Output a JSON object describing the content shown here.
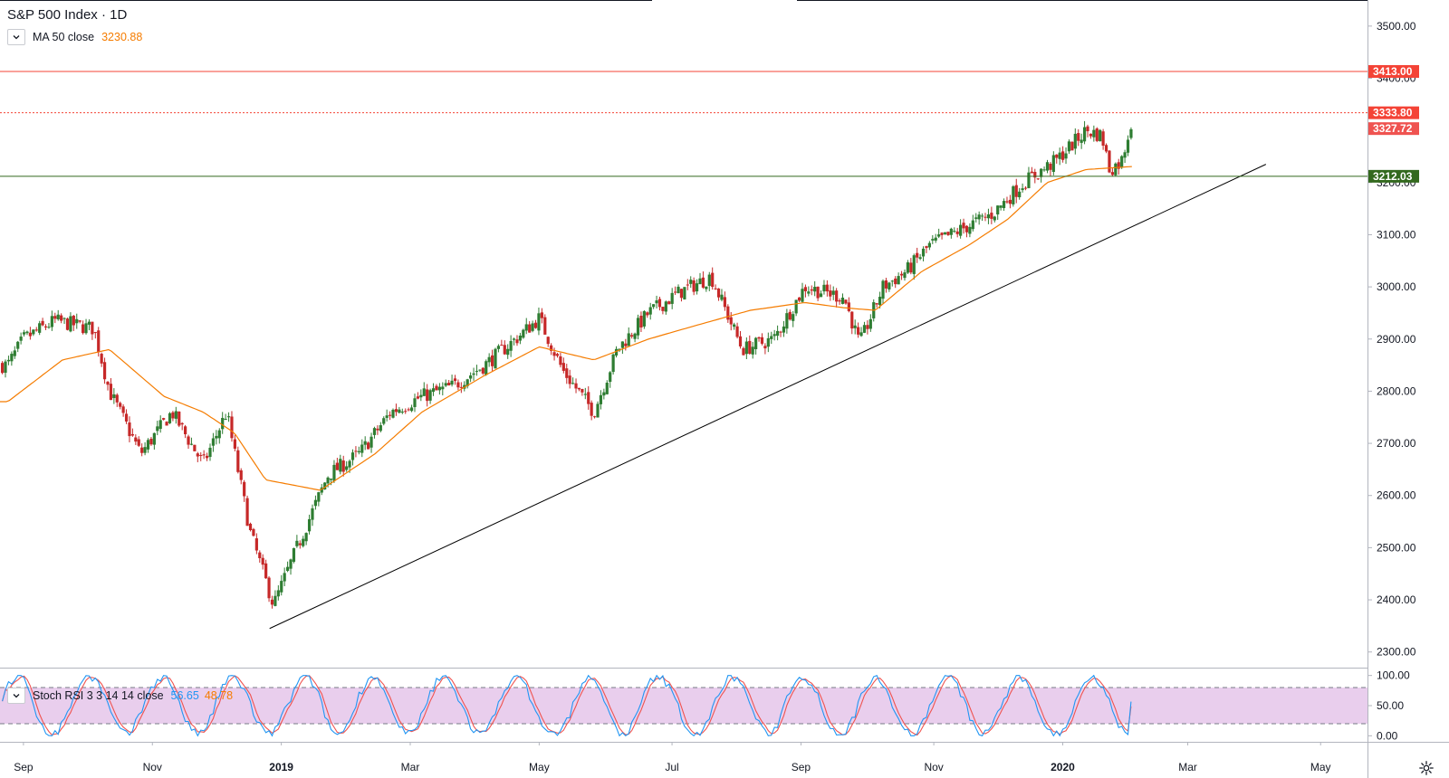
{
  "legend": {
    "title": "S&P 500 Index · 1D",
    "ma_label": "MA 50 close",
    "ma_value": "3230.88",
    "stoch_label": "Stoch RSI 3 3 14 14 close",
    "stoch_k": "56.65",
    "stoch_d": "48.78"
  },
  "colors": {
    "up": "#26a69a",
    "up_fill": "#2e7d32",
    "down": "#c62828",
    "ma": "#f57c00",
    "resistance": "#f44336",
    "support": "#33691e",
    "trendline": "#000000",
    "stoch_k": "#2196f3",
    "stoch_d": "#ef5350",
    "stoch_band": "#e1bee7"
  },
  "chart_data": {
    "type": "candlestick",
    "x_ticks": [
      "Sep",
      "Nov",
      "2019",
      "Mar",
      "May",
      "Jul",
      "Sep",
      "Nov",
      "2020",
      "Mar",
      "May"
    ],
    "y_ticks": [
      "3500.00",
      "3400.00",
      "3300.00",
      "3200.00",
      "3100.00",
      "3000.00",
      "2900.00",
      "2800.00",
      "2700.00",
      "2600.00",
      "2500.00",
      "2400.00",
      "2300.00"
    ],
    "ylim": [
      2270,
      3550
    ],
    "price_path": [
      [
        2018.65,
        2850
      ],
      [
        2018.67,
        2900
      ],
      [
        2018.71,
        2935
      ],
      [
        2018.76,
        2920
      ],
      [
        2018.78,
        2800
      ],
      [
        2018.82,
        2680
      ],
      [
        2018.86,
        2760
      ],
      [
        2018.9,
        2660
      ],
      [
        2018.93,
        2760
      ],
      [
        2018.96,
        2530
      ],
      [
        2018.99,
        2390
      ],
      [
        2019.02,
        2500
      ],
      [
        2019.06,
        2640
      ],
      [
        2019.1,
        2680
      ],
      [
        2019.14,
        2760
      ],
      [
        2019.18,
        2790
      ],
      [
        2019.22,
        2810
      ],
      [
        2019.26,
        2850
      ],
      [
        2019.3,
        2900
      ],
      [
        2019.33,
        2940
      ],
      [
        2019.36,
        2840
      ],
      [
        2019.4,
        2760
      ],
      [
        2019.43,
        2880
      ],
      [
        2019.47,
        2950
      ],
      [
        2019.51,
        2990
      ],
      [
        2019.55,
        3020
      ],
      [
        2019.59,
        2880
      ],
      [
        2019.63,
        2900
      ],
      [
        2019.67,
        3000
      ],
      [
        2019.72,
        2980
      ],
      [
        2019.74,
        2890
      ],
      [
        2019.77,
        3000
      ],
      [
        2019.8,
        3030
      ],
      [
        2019.83,
        3080
      ],
      [
        2019.87,
        3110
      ],
      [
        2019.91,
        3140
      ],
      [
        2019.95,
        3200
      ],
      [
        2019.99,
        3240
      ],
      [
        2020.03,
        3300
      ],
      [
        2020.05,
        3290
      ],
      [
        2020.06,
        3225
      ],
      [
        2020.075,
        3240
      ],
      [
        2020.09,
        3330
      ]
    ],
    "ma50_path": [
      [
        2018.65,
        2780
      ],
      [
        2018.72,
        2860
      ],
      [
        2018.78,
        2880
      ],
      [
        2018.85,
        2790
      ],
      [
        2018.9,
        2760
      ],
      [
        2018.94,
        2720
      ],
      [
        2018.98,
        2630
      ],
      [
        2019.05,
        2610
      ],
      [
        2019.12,
        2680
      ],
      [
        2019.18,
        2760
      ],
      [
        2019.26,
        2830
      ],
      [
        2019.33,
        2885
      ],
      [
        2019.4,
        2860
      ],
      [
        2019.47,
        2900
      ],
      [
        2019.54,
        2930
      ],
      [
        2019.6,
        2955
      ],
      [
        2019.67,
        2970
      ],
      [
        2019.72,
        2960
      ],
      [
        2019.76,
        2955
      ],
      [
        2019.82,
        3030
      ],
      [
        2019.88,
        3080
      ],
      [
        2019.93,
        3130
      ],
      [
        2019.98,
        3200
      ],
      [
        2020.03,
        3225
      ],
      [
        2020.09,
        3230.88
      ]
    ],
    "horizontal_levels": [
      {
        "label": "3413.00",
        "value": 3413.0,
        "style": "solid",
        "color": "#f44336"
      },
      {
        "label": "3333.80",
        "value": 3333.8,
        "style": "dotted",
        "color": "#f44336"
      },
      {
        "label": "3327.72",
        "value": 3327.72,
        "style": "solid",
        "color": "#ef5350"
      },
      {
        "label": "3212.03",
        "value": 3212.03,
        "style": "solid",
        "color": "#33691e"
      }
    ],
    "trendline": {
      "from": [
        2018.985,
        2345
      ],
      "to": [
        2020.26,
        3235
      ]
    },
    "stoch_rsi": {
      "y_ticks": [
        "100.00",
        "50.00",
        "0.00"
      ],
      "ylim": [
        0,
        100
      ],
      "upper_band": 80,
      "lower_band": 20,
      "k_last": 56.65,
      "d_last": 48.78
    }
  }
}
